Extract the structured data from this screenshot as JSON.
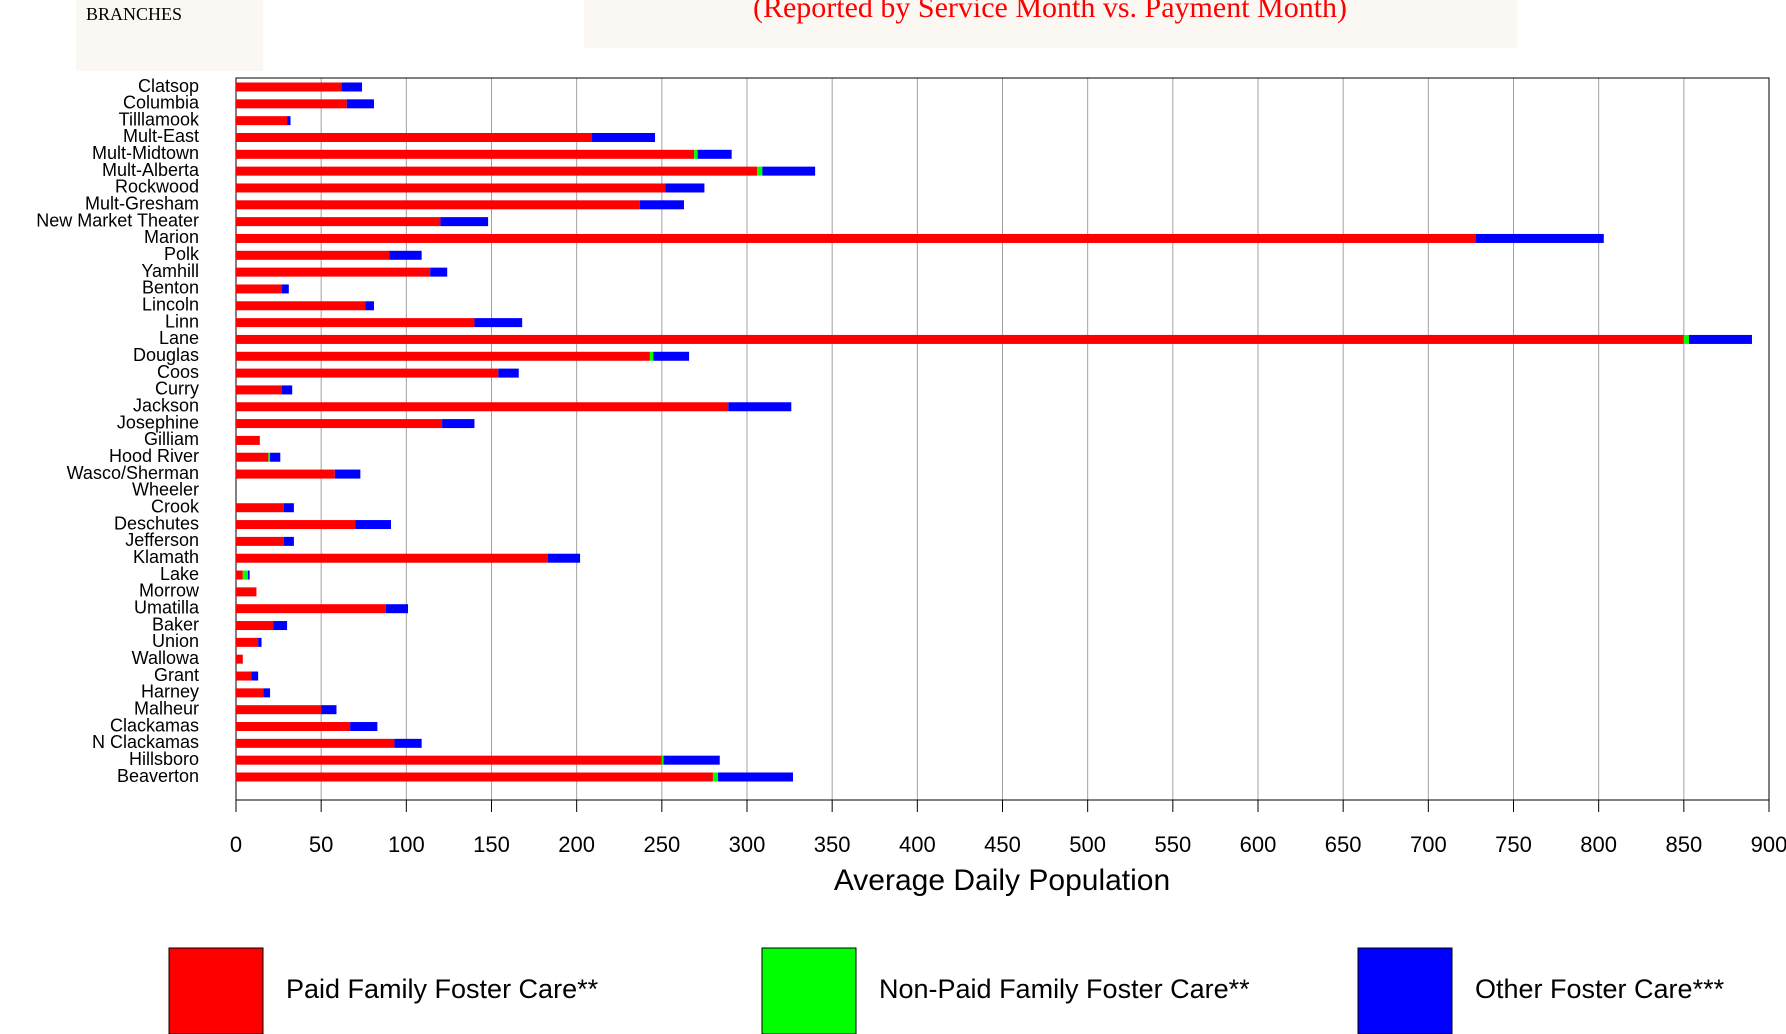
{
  "chart_data": {
    "type": "stacked-barh",
    "header_label": "BRANCHES",
    "title": "(Reported by Service Month vs. Payment Month)",
    "x_label": "Average Daily Population",
    "categories": [
      "Clatsop",
      "Columbia",
      "Tilllamook",
      "Mult-East",
      "Mult-Midtown",
      "Mult-Alberta",
      "Rockwood",
      "Mult-Gresham",
      "New Market Theater",
      "Marion",
      "Polk",
      "Yamhill",
      "Benton",
      "Lincoln",
      "Linn",
      "Lane",
      "Douglas",
      "Coos",
      "Curry",
      "Jackson",
      "Josephine",
      "Gilliam",
      "Hood River",
      "Wasco/Sherman",
      "Wheeler",
      "Crook",
      "Deschutes",
      "Jefferson",
      "Klamath",
      "Lake",
      "Morrow",
      "Umatilla",
      "Baker",
      "Union",
      "Wallowa",
      "Grant",
      "Harney",
      "Malheur",
      "Clackamas",
      "N Clackamas",
      "Hillsboro",
      "Beaverton"
    ],
    "series": [
      {
        "name": "Paid Family Foster Care**",
        "color": "#ff0000",
        "values": [
          62,
          65,
          30,
          209,
          269,
          306,
          252,
          237,
          120,
          728,
          90,
          114,
          27,
          76,
          140,
          850,
          243,
          154,
          27,
          289,
          121,
          14,
          19,
          58,
          0,
          28,
          70,
          28,
          183,
          4,
          12,
          88,
          22,
          13,
          4,
          9,
          16,
          50,
          67,
          93,
          250,
          280
        ]
      },
      {
        "name": "Non-Paid Family Foster Care**",
        "color": "#00ff00",
        "values": [
          0,
          0,
          0,
          0,
          2,
          3,
          0,
          0,
          0,
          0,
          0,
          0,
          0,
          0,
          0,
          3,
          2,
          0,
          0,
          0,
          0,
          0,
          1,
          0,
          0,
          0,
          0,
          0,
          0,
          3,
          0,
          0,
          0,
          0,
          0,
          0,
          0,
          0,
          0,
          0,
          1,
          3
        ]
      },
      {
        "name": "Other Foster Care***",
        "color": "#0000ff",
        "values": [
          12,
          16,
          2,
          37,
          20,
          31,
          23,
          26,
          28,
          75,
          19,
          10,
          4,
          5,
          28,
          37,
          21,
          12,
          6,
          37,
          19,
          0,
          6,
          15,
          0,
          6,
          21,
          6,
          19,
          1,
          0,
          13,
          8,
          2,
          0,
          4,
          4,
          9,
          16,
          16,
          33,
          44
        ]
      }
    ],
    "xlim": [
      0,
      900
    ],
    "xticks": [
      0,
      50,
      100,
      150,
      200,
      250,
      300,
      350,
      400,
      450,
      500,
      550,
      600,
      650,
      700,
      750,
      800,
      850,
      900
    ],
    "grid": true,
    "legend": "bottom"
  }
}
